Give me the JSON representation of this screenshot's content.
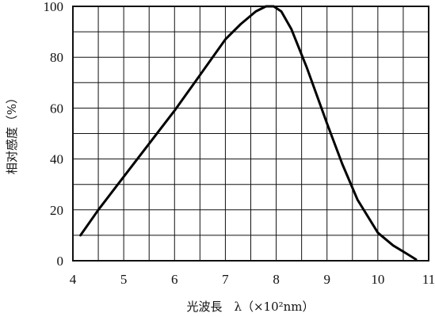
{
  "chart_data": {
    "type": "line",
    "title": "",
    "xlabel": "光波長　λ（×10²nm）",
    "ylabel": "相对感度（%）",
    "xlim": [
      4,
      11
    ],
    "ylim": [
      0,
      100
    ],
    "x_ticks": [
      "4",
      "5",
      "6",
      "7",
      "8",
      "9",
      "10",
      "11"
    ],
    "y_ticks": [
      "0",
      "20",
      "40",
      "60",
      "80",
      "100"
    ],
    "grid": true,
    "series": [
      {
        "name": "",
        "x": [
          4.15,
          4.5,
          5.0,
          5.5,
          6.0,
          6.5,
          7.0,
          7.3,
          7.6,
          7.8,
          7.95,
          8.1,
          8.3,
          8.6,
          9.0,
          9.3,
          9.6,
          10.0,
          10.3,
          10.55,
          10.75
        ],
        "y": [
          10,
          20,
          33,
          46,
          59,
          73,
          87,
          93,
          98,
          100,
          100,
          98,
          91,
          76,
          54,
          38,
          24,
          11,
          6,
          3,
          0.5
        ]
      }
    ]
  }
}
